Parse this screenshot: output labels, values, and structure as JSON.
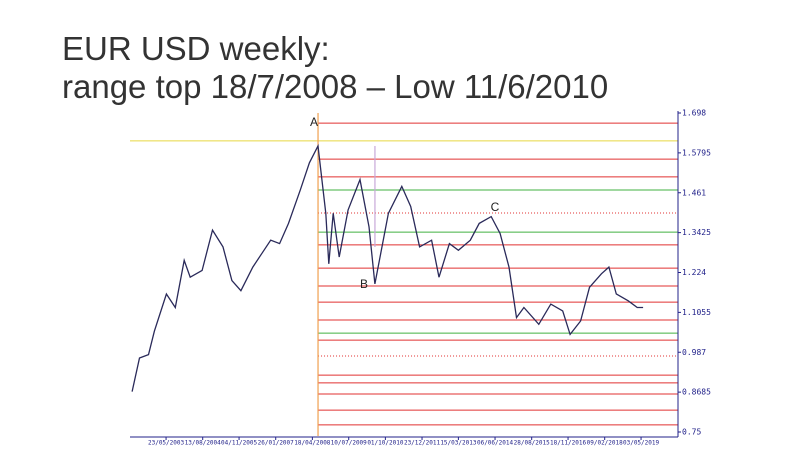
{
  "slide": {
    "title_lines": [
      "EUR USD weekly:",
      "range top 18/7/2008 – Low 11/6/2010"
    ]
  },
  "chart_data": {
    "type": "line",
    "x": [
      2002.25,
      2002.5,
      2002.8,
      2003.0,
      2003.4,
      2003.7,
      2004.0,
      2004.2,
      2004.6,
      2004.95,
      2005.3,
      2005.6,
      2005.9,
      2006.3,
      2006.6,
      2006.9,
      2007.2,
      2007.5,
      2007.9,
      2008.2,
      2008.49,
      2008.75,
      2008.85,
      2009.0,
      2009.2,
      2009.5,
      2009.9,
      2010.2,
      2010.4,
      2010.85,
      2011.3,
      2011.6,
      2011.9,
      2012.3,
      2012.55,
      2012.9,
      2013.2,
      2013.6,
      2013.9,
      2014.3,
      2014.6,
      2014.9,
      2015.15,
      2015.4,
      2015.9,
      2016.3,
      2016.7,
      2016.95,
      2017.3,
      2017.6,
      2018.0,
      2018.25,
      2018.5,
      2018.9,
      2019.2,
      2019.4
    ],
    "series": [
      {
        "color": "#2a2a5a",
        "values": [
          0.87,
          0.97,
          0.98,
          1.05,
          1.16,
          1.12,
          1.26,
          1.21,
          1.23,
          1.35,
          1.3,
          1.2,
          1.17,
          1.24,
          1.28,
          1.32,
          1.31,
          1.37,
          1.47,
          1.55,
          1.6,
          1.4,
          1.25,
          1.4,
          1.27,
          1.41,
          1.5,
          1.36,
          1.19,
          1.4,
          1.48,
          1.42,
          1.3,
          1.32,
          1.21,
          1.31,
          1.29,
          1.32,
          1.37,
          1.39,
          1.34,
          1.24,
          1.09,
          1.12,
          1.07,
          1.13,
          1.11,
          1.04,
          1.08,
          1.18,
          1.22,
          1.24,
          1.16,
          1.14,
          1.12,
          1.12
        ]
      }
    ],
    "xlim": [
      2002.18,
      2020.57
    ],
    "xticks": [
      {
        "value": 2003.39,
        "label": "23/05/2003"
      },
      {
        "value": 2004.62,
        "label": "13/08/2004"
      },
      {
        "value": 2005.84,
        "label": "04/11/2005"
      },
      {
        "value": 2007.07,
        "label": "26/01/2007"
      },
      {
        "value": 2008.3,
        "label": "18/04/2008"
      },
      {
        "value": 2009.52,
        "label": "10/07/2009"
      },
      {
        "value": 2010.75,
        "label": "01/10/2010"
      },
      {
        "value": 2011.98,
        "label": "23/12/2011"
      },
      {
        "value": 2013.2,
        "label": "15/03/2013"
      },
      {
        "value": 2014.43,
        "label": "06/06/2014"
      },
      {
        "value": 2015.66,
        "label": "28/08/2015"
      },
      {
        "value": 2016.88,
        "label": "18/11/2016"
      },
      {
        "value": 2018.11,
        "label": "09/02/2018"
      },
      {
        "value": 2019.33,
        "label": "03/05/2019"
      }
    ],
    "ylim": [
      0.75,
      1.698
    ],
    "yticks": [
      {
        "value": 1.698,
        "label": "1.698"
      },
      1.5795,
      1.461,
      1.3425,
      1.224,
      1.1055,
      {
        "value": 0.987,
        "label": "0.987"
      },
      0.8685,
      {
        "value": 0.75,
        "label": "0.75"
      }
    ],
    "levels": [
      {
        "value": 1.668,
        "color": "#e03030"
      },
      {
        "value": 1.615,
        "color": "#e8d840",
        "full": true
      },
      {
        "value": 1.561,
        "color": "#e03030"
      },
      {
        "value": 1.508,
        "color": "#e03030"
      },
      {
        "value": 1.469,
        "color": "#40b040"
      },
      {
        "value": 1.401,
        "color": "#e03030",
        "dotted": true
      },
      {
        "value": 1.344,
        "color": "#40b040"
      },
      {
        "value": 1.306,
        "color": "#e03030"
      },
      {
        "value": 1.237,
        "color": "#e03030"
      },
      {
        "value": 1.184,
        "color": "#e03030"
      },
      {
        "value": 1.136,
        "color": "#e03030"
      },
      {
        "value": 1.083,
        "color": "#e03030"
      },
      {
        "value": 1.044,
        "color": "#40b040"
      },
      {
        "value": 1.023,
        "color": "#e03030"
      },
      {
        "value": 0.976,
        "color": "#e03030",
        "dotted": true
      },
      {
        "value": 0.919,
        "color": "#e03030"
      },
      {
        "value": 0.896,
        "color": "#e03030"
      },
      {
        "value": 0.863,
        "color": "#e03030"
      },
      {
        "value": 0.815,
        "color": "#e03030"
      },
      {
        "value": 0.771,
        "color": "#e03030"
      }
    ],
    "vlines": [
      {
        "x": 2008.49,
        "color": "#f0a050"
      },
      {
        "x": 2010.4,
        "color": "#c8a8d8"
      }
    ],
    "annotations": [
      "A",
      "B",
      "C"
    ]
  }
}
